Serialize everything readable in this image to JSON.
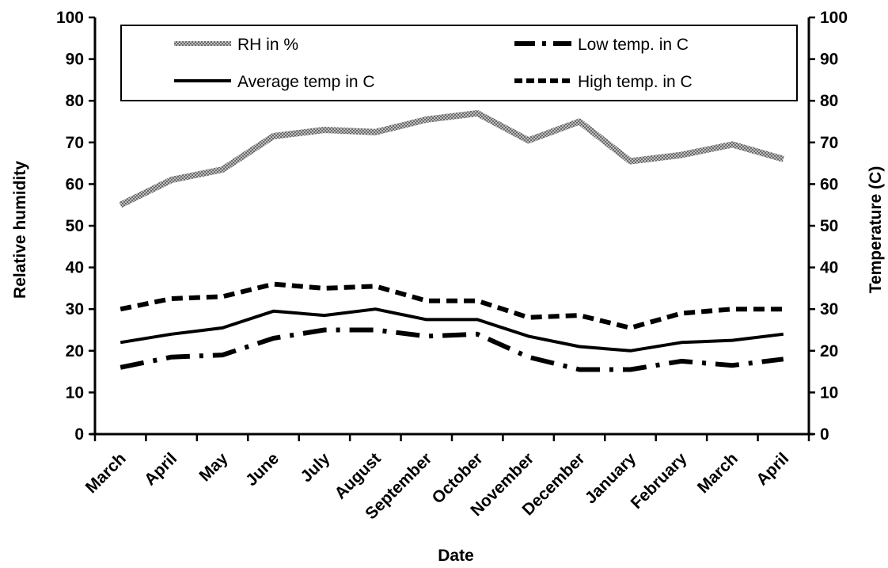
{
  "chart_data": {
    "type": "line",
    "categories": [
      "March",
      "April",
      "May",
      "June",
      "July",
      "August",
      "September",
      "October",
      "November",
      "December",
      "January",
      "February",
      "March",
      "April"
    ],
    "xlabel": "Date",
    "ylabel": "Relative humidity",
    "ylabel_right": "Temperature (C)",
    "ylim": [
      0,
      100
    ],
    "ylim_right": [
      0,
      100
    ],
    "yticks": [
      0,
      10,
      20,
      30,
      40,
      50,
      60,
      70,
      80,
      90,
      100
    ],
    "legend_position": "top",
    "grid": false,
    "series": [
      {
        "name": "RH in %",
        "axis": "left",
        "style": "rh-hatched",
        "values": [
          55,
          61,
          63.5,
          71.5,
          73,
          72.5,
          75.5,
          77,
          70.5,
          75,
          65.5,
          67,
          69.5,
          66
        ]
      },
      {
        "name": "Low temp. in C",
        "axis": "right",
        "style": "dash-dot",
        "values": [
          16,
          18.5,
          19,
          23,
          25,
          25,
          23.5,
          24,
          18.5,
          15.5,
          15.5,
          17.5,
          16.5,
          18
        ]
      },
      {
        "name": "Average temp in C",
        "axis": "right",
        "style": "solid",
        "values": [
          22,
          24,
          25.5,
          29.5,
          28.5,
          30,
          27.5,
          27.5,
          23.5,
          21,
          20,
          22,
          22.5,
          24
        ]
      },
      {
        "name": "High temp. in C",
        "axis": "right",
        "style": "dashed",
        "values": [
          30,
          32.5,
          33,
          36,
          35,
          35.5,
          32,
          32,
          28,
          28.5,
          25.5,
          29,
          30,
          30
        ]
      }
    ]
  }
}
